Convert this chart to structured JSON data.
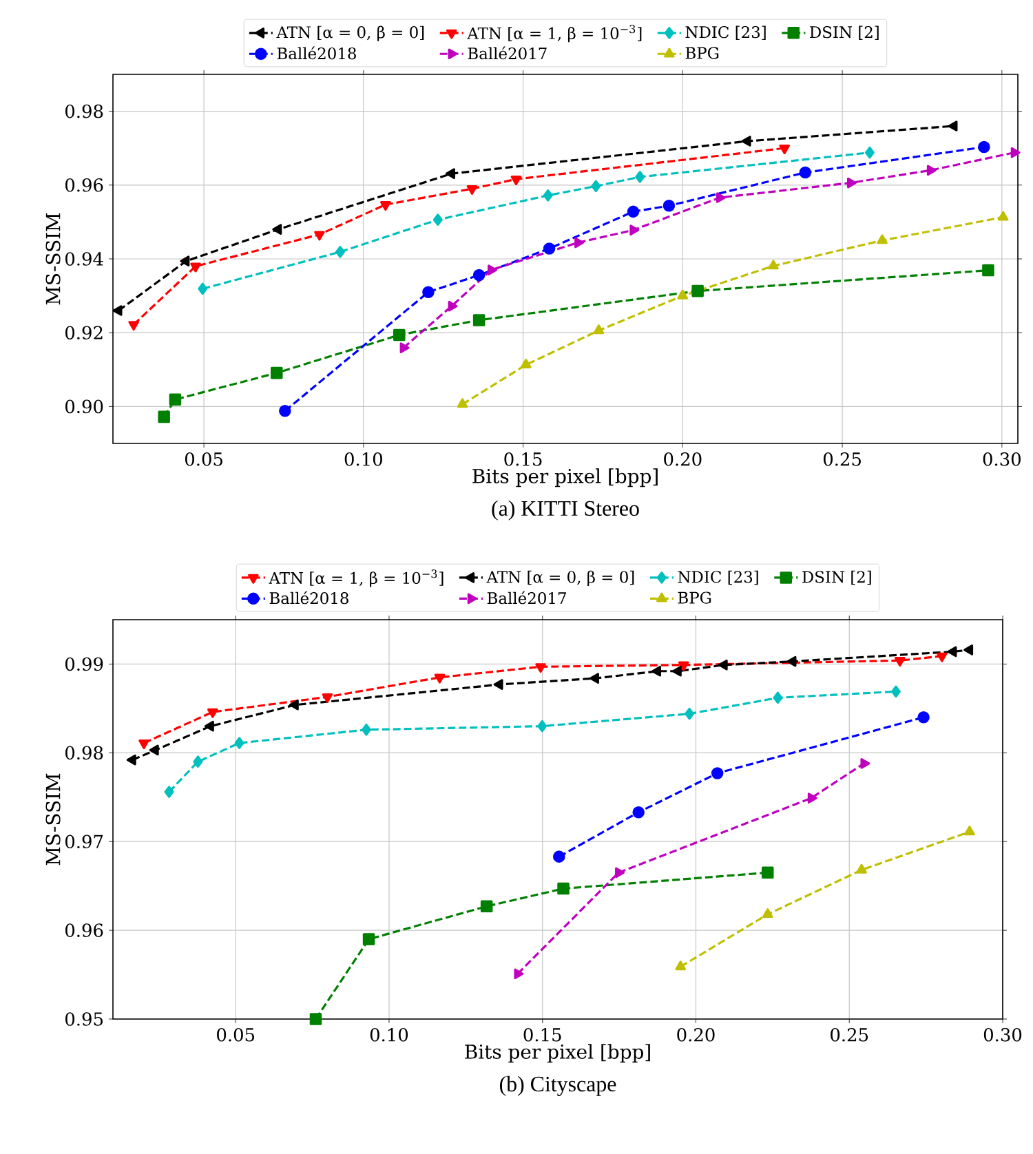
{
  "chart_data": [
    {
      "type": "line",
      "title": "(a) KITTI Stereo",
      "xlabel": "Bits per pixel [bpp]",
      "ylabel": "MS-SSIM",
      "xlim": [
        0.0215,
        0.305
      ],
      "ylim": [
        0.89,
        0.99
      ],
      "xticks": [
        0.05,
        {
          "value": 0.1,
          "label": "0.10"
        },
        0.15,
        {
          "value": 0.2,
          "label": "0.20"
        },
        0.25,
        {
          "value": 0.3,
          "label": "0.30"
        }
      ],
      "yticks": [
        {
          "value": 0.9,
          "label": "0.90"
        },
        0.92,
        0.94,
        0.96,
        0.98
      ],
      "grid": true,
      "legend": "top",
      "line_style": "dashed",
      "series": [
        {
          "name": "ATN [α = 0, β = 0]",
          "color": "#000000",
          "marker": "triangle-left",
          "x": [
            0.0233,
            0.0444,
            0.0733,
            0.1276,
            0.2203,
            0.285
          ],
          "values": [
            0.926,
            0.9394,
            0.948,
            0.9631,
            0.9719,
            0.976
          ]
        },
        {
          "name": "ATN [α = 1, β = 10$^{−3}$]",
          "color": "#ff0000",
          "marker": "triangle-down",
          "x": [
            0.028,
            0.0474,
            0.0862,
            0.1069,
            0.134,
            0.1478,
            0.2319
          ],
          "values": [
            0.9222,
            0.938,
            0.9466,
            0.9547,
            0.959,
            0.9616,
            0.97
          ]
        },
        {
          "name": "NDIC [23]",
          "color": "#00bfbf",
          "marker": "diamond",
          "x": [
            0.0496,
            0.0927,
            0.1233,
            0.1578,
            0.1728,
            0.1866,
            0.2586
          ],
          "values": [
            0.9319,
            0.9419,
            0.9506,
            0.9572,
            0.9597,
            0.9622,
            0.9688
          ]
        },
        {
          "name": "DSIN [2]",
          "color": "#008000",
          "marker": "square",
          "x": [
            0.0375,
            0.041,
            0.0728,
            0.1112,
            0.1362,
            0.2047,
            0.2957
          ],
          "values": [
            0.8972,
            0.9019,
            0.9091,
            0.9194,
            0.9234,
            0.9313,
            0.9369
          ]
        },
        {
          "name": "Ballé2018",
          "color": "#0000ff",
          "marker": "circle",
          "x": [
            0.0754,
            0.1203,
            0.1362,
            0.1582,
            0.1845,
            0.1957,
            0.2384,
            0.2944
          ],
          "values": [
            0.8988,
            0.931,
            0.9356,
            0.9428,
            0.9528,
            0.9544,
            0.9634,
            0.9703
          ]
        },
        {
          "name": "Ballé2017",
          "color": "#bf00bf",
          "marker": "triangle-right",
          "x": [
            0.1125,
            0.1276,
            0.14,
            0.1672,
            0.1845,
            0.2116,
            0.2526,
            0.2776,
            0.3039
          ],
          "values": [
            0.9159,
            0.9272,
            0.937,
            0.9444,
            0.9478,
            0.9566,
            0.9606,
            0.964,
            0.9688
          ]
        },
        {
          "name": "BPG",
          "color": "#bfbf00",
          "marker": "triangle",
          "x": [
            0.131,
            0.1509,
            0.1737,
            0.2,
            0.2284,
            0.2625,
            0.3004
          ],
          "values": [
            0.9006,
            0.9113,
            0.9206,
            0.93,
            0.9381,
            0.945,
            0.9513
          ]
        }
      ]
    },
    {
      "type": "line",
      "title": "(b) Cityscape",
      "xlabel": "Bits per pixel [bpp]",
      "ylabel": "MS-SSIM",
      "xlim": [
        0.01,
        0.3
      ],
      "ylim": [
        0.95,
        0.995
      ],
      "xticks": [
        0.05,
        {
          "value": 0.1,
          "label": "0.10"
        },
        0.15,
        {
          "value": 0.2,
          "label": "0.20"
        },
        0.25,
        {
          "value": 0.3,
          "label": "0.30"
        }
      ],
      "yticks": [
        0.95,
        0.96,
        0.97,
        0.98,
        0.99
      ],
      "grid": true,
      "legend": "top",
      "line_style": "dashed",
      "series": [
        {
          "name": "ATN [α = 1, β = 10$^{−3}$]",
          "color": "#ff0000",
          "marker": "triangle-down",
          "x": [
            0.0201,
            0.0425,
            0.0799,
            0.1165,
            0.1494,
            0.196,
            0.2665,
            0.2802
          ],
          "values": [
            0.9811,
            0.9846,
            0.9863,
            0.9885,
            0.9897,
            0.9899,
            0.9904,
            0.9909
          ]
        },
        {
          "name": "ATN [α = 0, β = 0]",
          "color": "#000000",
          "marker": "triangle-left",
          "x": [
            0.0164,
            0.0238,
            0.0418,
            0.0694,
            0.136,
            0.1673,
            0.1875,
            0.1942,
            0.2092,
            0.2316,
            0.2839,
            0.2892
          ],
          "values": [
            0.9792,
            0.9803,
            0.983,
            0.9854,
            0.9877,
            0.9884,
            0.9892,
            0.9892,
            0.9899,
            0.9903,
            0.9914,
            0.9916
          ]
        },
        {
          "name": "NDIC [23]",
          "color": "#00bfbf",
          "marker": "diamond",
          "x": [
            0.0283,
            0.0377,
            0.0512,
            0.0926,
            0.1499,
            0.1979,
            0.2267,
            0.2652
          ],
          "values": [
            0.9756,
            0.979,
            0.9811,
            0.9826,
            0.983,
            0.9844,
            0.9862,
            0.9869
          ]
        },
        {
          "name": "DSIN [2]",
          "color": "#008000",
          "marker": "square",
          "x": [
            0.0761,
            0.0934,
            0.1318,
            0.1568,
            0.2234
          ],
          "values": [
            0.95,
            0.959,
            0.9627,
            0.9647,
            0.9665
          ]
        },
        {
          "name": "Ballé2018",
          "color": "#0000ff",
          "marker": "circle",
          "x": [
            0.1554,
            0.1813,
            0.207,
            0.2742
          ],
          "values": [
            0.9683,
            0.9733,
            0.9777,
            0.984
          ]
        },
        {
          "name": "Ballé2017",
          "color": "#bf00bf",
          "marker": "triangle-right",
          "x": [
            0.1419,
            0.1748,
            0.2376,
            0.2548
          ],
          "values": [
            0.9551,
            0.9665,
            0.9749,
            0.9788
          ]
        },
        {
          "name": "BPG",
          "color": "#bfbf00",
          "marker": "triangle",
          "x": [
            0.195,
            0.2234,
            0.254,
            0.2892
          ],
          "values": [
            0.9559,
            0.9618,
            0.9668,
            0.9711
          ]
        }
      ]
    }
  ]
}
